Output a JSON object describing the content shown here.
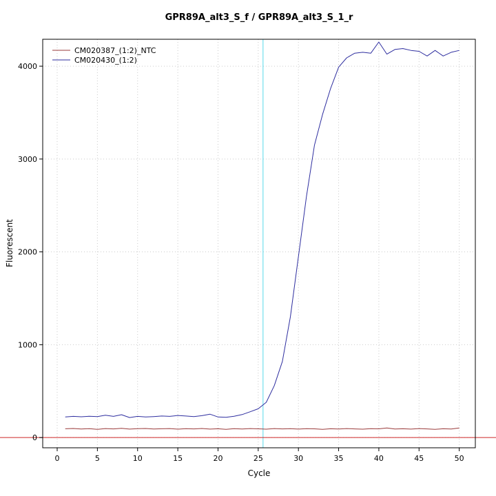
{
  "title": "GPR89A_alt3_S_f / GPR89A_alt3_S_1_r",
  "chart_data": {
    "type": "line",
    "title": "GPR89A_alt3_S_f / GPR89A_alt3_S_1_r",
    "xlabel": "Cycle",
    "ylabel": "Fluorescent",
    "xlim": [
      -1.8,
      52
    ],
    "ylim": [
      -110,
      4290
    ],
    "x_ticks": [
      0,
      5,
      10,
      15,
      20,
      25,
      30,
      35,
      40,
      45,
      50
    ],
    "y_ticks": [
      0,
      1000,
      2000,
      3000,
      4000
    ],
    "grid": true,
    "legend_position": "top-left",
    "colors": {
      "grid": "#c9c9c9",
      "box": "#000000",
      "text": "#000000"
    },
    "threshold_line": {
      "x": 25.6,
      "color": "#55d8ea"
    },
    "baseline": {
      "y": 0,
      "color": "#cd2626"
    },
    "series": [
      {
        "name": "CM020387_(1:2)_NTC",
        "color": "#9a3a3a",
        "x": [
          1,
          2,
          3,
          4,
          5,
          6,
          7,
          8,
          9,
          10,
          11,
          12,
          13,
          14,
          15,
          16,
          17,
          18,
          19,
          20,
          21,
          22,
          23,
          24,
          25,
          26,
          27,
          28,
          29,
          30,
          31,
          32,
          33,
          34,
          35,
          36,
          37,
          38,
          39,
          40,
          41,
          42,
          43,
          44,
          45,
          46,
          47,
          48,
          49,
          50
        ],
        "values": [
          95,
          98,
          92,
          96,
          88,
          97,
          93,
          99,
          91,
          96,
          98,
          92,
          95,
          97,
          90,
          96,
          93,
          98,
          91,
          95,
          89,
          96,
          92,
          97,
          94,
          90,
          97,
          93,
          96,
          91,
          96,
          94,
          88,
          95,
          92,
          97,
          93,
          90,
          96,
          94,
          104,
          92,
          95,
          91,
          97,
          93,
          89,
          95,
          92,
          104
        ]
      },
      {
        "name": "CM020430_(1:2)",
        "color": "#2d2d9f",
        "x": [
          1,
          2,
          3,
          4,
          5,
          6,
          7,
          8,
          9,
          10,
          11,
          12,
          13,
          14,
          15,
          16,
          17,
          18,
          19,
          20,
          21,
          22,
          23,
          24,
          25,
          26,
          27,
          28,
          29,
          30,
          31,
          32,
          33,
          34,
          35,
          36,
          37,
          38,
          39,
          40,
          41,
          42,
          43,
          44,
          45,
          46,
          47,
          48,
          49,
          50
        ],
        "values": [
          222,
          228,
          224,
          230,
          226,
          240,
          228,
          246,
          216,
          228,
          222,
          226,
          232,
          228,
          238,
          232,
          226,
          236,
          252,
          222,
          218,
          230,
          248,
          278,
          310,
          380,
          560,
          820,
          1300,
          1950,
          2600,
          3150,
          3480,
          3760,
          3990,
          4090,
          4140,
          4150,
          4140,
          4260,
          4130,
          4180,
          4190,
          4170,
          4160,
          4110,
          4170,
          4110,
          4150,
          4170
        ]
      }
    ]
  }
}
